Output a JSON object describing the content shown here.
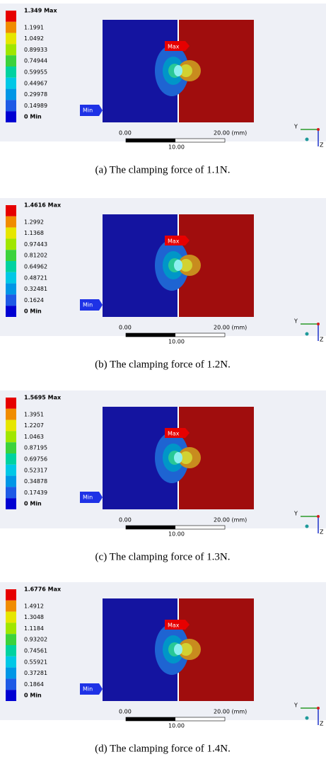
{
  "panels": [
    {
      "legend": [
        "1.349 Max",
        "1.1991",
        "1.0492",
        "0.89933",
        "0.74944",
        "0.59955",
        "0.44967",
        "0.29978",
        "0.14989",
        "0 Min"
      ],
      "max_tag": "Max",
      "min_tag": "Min",
      "scale": [
        "0.00",
        "20.00 (mm)",
        "10.00"
      ],
      "axes": [
        "Y",
        "Z"
      ],
      "caption": "(a) The clamping force of 1.1N."
    },
    {
      "legend": [
        "1.4616 Max",
        "1.2992",
        "1.1368",
        "0.97443",
        "0.81202",
        "0.64962",
        "0.48721",
        "0.32481",
        "0.1624",
        "0 Min"
      ],
      "max_tag": "Max",
      "min_tag": "Min",
      "scale": [
        "0.00",
        "20.00 (mm)",
        "10.00"
      ],
      "axes": [
        "Y",
        "Z"
      ],
      "caption": "(b) The clamping force of 1.2N."
    },
    {
      "legend": [
        "1.5695 Max",
        "1.3951",
        "1.2207",
        "1.0463",
        "0.87195",
        "0.69756",
        "0.52317",
        "0.34878",
        "0.17439",
        "0 Min"
      ],
      "max_tag": "Max",
      "min_tag": "Min",
      "scale": [
        "0.00",
        "20.00 (mm)",
        "10.00"
      ],
      "axes": [
        "Y",
        "Z"
      ],
      "caption": "(c) The clamping force of 1.3N."
    },
    {
      "legend": [
        "1.6776 Max",
        "1.4912",
        "1.3048",
        "1.1184",
        "0.93202",
        "0.74561",
        "0.55921",
        "0.37281",
        "0.1864",
        "0 Min"
      ],
      "max_tag": "Max",
      "min_tag": "Min",
      "scale": [
        "0.00",
        "20.00 (mm)",
        "10.00"
      ],
      "axes": [
        "Y",
        "Z"
      ],
      "caption": "(d) The clamping force of 1.4N."
    }
  ]
}
